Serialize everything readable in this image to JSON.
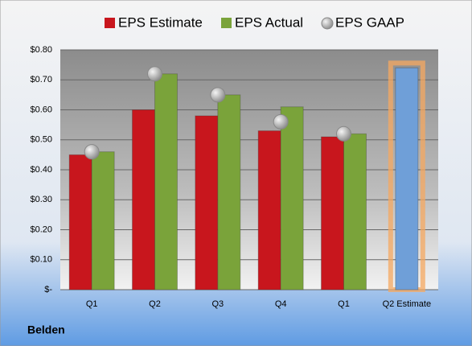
{
  "chart_data": {
    "type": "bar",
    "categories": [
      "Q1",
      "Q2",
      "Q3",
      "Q4",
      "Q1",
      "Q2 Estimate"
    ],
    "series": [
      {
        "name": "EPS Estimate",
        "color": "#c8161d",
        "values": [
          0.45,
          0.6,
          0.58,
          0.53,
          0.51,
          0.74
        ],
        "point_colors": [
          "#c8161d",
          "#c8161d",
          "#c8161d",
          "#c8161d",
          "#c8161d",
          "#6f9fd8"
        ]
      },
      {
        "name": "EPS Actual",
        "color": "#7aa33a",
        "values": [
          0.46,
          0.72,
          0.65,
          0.61,
          0.52,
          null
        ]
      },
      {
        "name": "EPS GAAP",
        "color": "#a9a9a9",
        "marker": "circle",
        "values": [
          0.46,
          0.72,
          0.65,
          0.56,
          0.52,
          null
        ]
      }
    ],
    "ylim": [
      0,
      0.8
    ],
    "yticks": [
      {
        "value": 0,
        "label": "$-"
      },
      {
        "value": 0.1,
        "label": "$0.10"
      },
      {
        "value": 0.2,
        "label": "$0.20"
      },
      {
        "value": 0.3,
        "label": "$0.30"
      },
      {
        "value": 0.4,
        "label": "$0.40"
      },
      {
        "value": 0.5,
        "label": "$0.50"
      },
      {
        "value": 0.6,
        "label": "$0.60"
      },
      {
        "value": 0.7,
        "label": "$0.70"
      },
      {
        "value": 0.8,
        "label": "$0.80"
      }
    ],
    "grid": true,
    "legend": "top",
    "company": "Belden"
  }
}
